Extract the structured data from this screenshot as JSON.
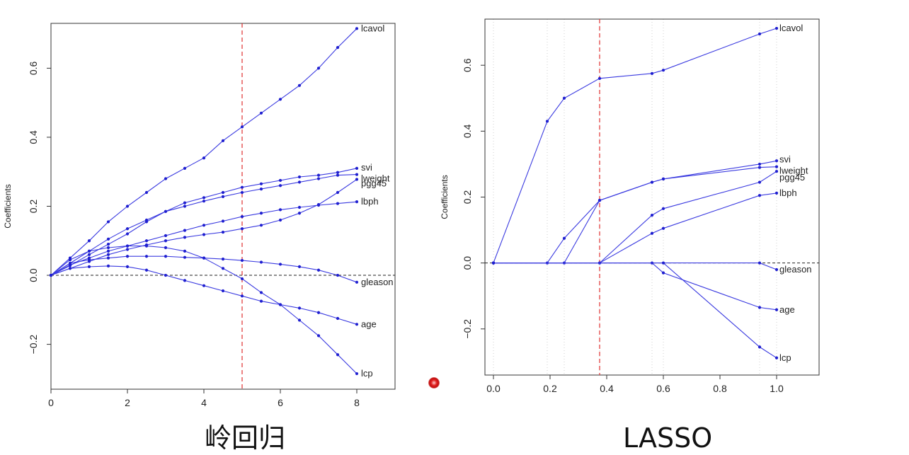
{
  "captions": {
    "ridge": "岭回归",
    "lasso": "LASSO"
  },
  "colors": {
    "series": "#3a3ae0",
    "points": "#1f1fd0",
    "lambda_line": "#e03030",
    "zero_line": "#222222",
    "cursor": "#e02020"
  },
  "chart_data": [
    {
      "id": "ridge",
      "type": "line",
      "ylabel": "Coefficients",
      "xlabel": "",
      "xlim": [
        0,
        9
      ],
      "ylim": [
        -0.33,
        0.73
      ],
      "x_ticks": [
        0,
        2,
        4,
        6,
        8
      ],
      "y_ticks": [
        -0.2,
        0.0,
        0.2,
        0.4,
        0.6
      ],
      "y_tick_labels": [
        "−0.2",
        "0.0",
        "0.2",
        "0.4",
        "0.6"
      ],
      "zero_line": 0,
      "vline": 5,
      "series": [
        {
          "name": "lcavol",
          "points": [
            [
              0,
              0
            ],
            [
              0.5,
              0.05
            ],
            [
              1,
              0.1
            ],
            [
              1.5,
              0.155
            ],
            [
              2,
              0.2
            ],
            [
              2.5,
              0.24
            ],
            [
              3,
              0.28
            ],
            [
              3.5,
              0.31
            ],
            [
              4,
              0.34
            ],
            [
              4.5,
              0.39
            ],
            [
              5,
              0.43
            ],
            [
              5.5,
              0.47
            ],
            [
              6,
              0.51
            ],
            [
              6.5,
              0.55
            ],
            [
              7,
              0.6
            ],
            [
              7.5,
              0.66
            ],
            [
              8,
              0.715
            ]
          ]
        },
        {
          "name": "svi",
          "points": [
            [
              0,
              0
            ],
            [
              0.5,
              0.028
            ],
            [
              1,
              0.06
            ],
            [
              1.5,
              0.09
            ],
            [
              2,
              0.12
            ],
            [
              2.5,
              0.155
            ],
            [
              3,
              0.185
            ],
            [
              3.5,
              0.21
            ],
            [
              4,
              0.225
            ],
            [
              4.5,
              0.24
            ],
            [
              5,
              0.255
            ],
            [
              5.5,
              0.265
            ],
            [
              6,
              0.275
            ],
            [
              6.5,
              0.285
            ],
            [
              7,
              0.29
            ],
            [
              7.5,
              0.298
            ],
            [
              8,
              0.31
            ]
          ]
        },
        {
          "name": "lweight",
          "points": [
            [
              0,
              0
            ],
            [
              0.5,
              0.035
            ],
            [
              1,
              0.07
            ],
            [
              1.5,
              0.105
            ],
            [
              2,
              0.135
            ],
            [
              2.5,
              0.16
            ],
            [
              3,
              0.185
            ],
            [
              3.5,
              0.2
            ],
            [
              4,
              0.215
            ],
            [
              4.5,
              0.228
            ],
            [
              5,
              0.24
            ],
            [
              5.5,
              0.25
            ],
            [
              6,
              0.26
            ],
            [
              6.5,
              0.27
            ],
            [
              7,
              0.28
            ],
            [
              7.5,
              0.29
            ],
            [
              8,
              0.292
            ]
          ]
        },
        {
          "name": "pgg45",
          "points": [
            [
              0,
              0
            ],
            [
              0.5,
              0.02
            ],
            [
              1,
              0.04
            ],
            [
              1.5,
              0.06
            ],
            [
              2,
              0.075
            ],
            [
              2.5,
              0.088
            ],
            [
              3,
              0.1
            ],
            [
              3.5,
              0.11
            ],
            [
              4,
              0.118
            ],
            [
              4.5,
              0.125
            ],
            [
              5,
              0.135
            ],
            [
              5.5,
              0.145
            ],
            [
              6,
              0.16
            ],
            [
              6.5,
              0.18
            ],
            [
              7,
              0.205
            ],
            [
              7.5,
              0.24
            ],
            [
              8,
              0.278
            ]
          ]
        },
        {
          "name": "lbph",
          "points": [
            [
              0,
              0
            ],
            [
              0.5,
              0.03
            ],
            [
              1,
              0.05
            ],
            [
              1.5,
              0.07
            ],
            [
              2,
              0.085
            ],
            [
              2.5,
              0.1
            ],
            [
              3,
              0.115
            ],
            [
              3.5,
              0.13
            ],
            [
              4,
              0.145
            ],
            [
              4.5,
              0.157
            ],
            [
              5,
              0.17
            ],
            [
              5.5,
              0.18
            ],
            [
              6,
              0.19
            ],
            [
              6.5,
              0.197
            ],
            [
              7,
              0.203
            ],
            [
              7.5,
              0.208
            ],
            [
              8,
              0.213
            ]
          ]
        },
        {
          "name": "gleason",
          "points": [
            [
              0,
              0
            ],
            [
              0.5,
              0.035
            ],
            [
              1,
              0.045
            ],
            [
              1.5,
              0.05
            ],
            [
              2,
              0.055
            ],
            [
              2.5,
              0.055
            ],
            [
              3,
              0.055
            ],
            [
              3.5,
              0.052
            ],
            [
              4,
              0.05
            ],
            [
              4.5,
              0.047
            ],
            [
              5,
              0.043
            ],
            [
              5.5,
              0.038
            ],
            [
              6,
              0.032
            ],
            [
              6.5,
              0.025
            ],
            [
              7,
              0.015
            ],
            [
              7.5,
              0.0
            ],
            [
              8,
              -0.02
            ]
          ]
        },
        {
          "name": "age",
          "points": [
            [
              0,
              0
            ],
            [
              0.5,
              0.02
            ],
            [
              1,
              0.025
            ],
            [
              1.5,
              0.027
            ],
            [
              2,
              0.025
            ],
            [
              2.5,
              0.015
            ],
            [
              3,
              0.0
            ],
            [
              3.5,
              -0.015
            ],
            [
              4,
              -0.03
            ],
            [
              4.5,
              -0.045
            ],
            [
              5,
              -0.06
            ],
            [
              5.5,
              -0.075
            ],
            [
              6,
              -0.085
            ],
            [
              6.5,
              -0.095
            ],
            [
              7,
              -0.108
            ],
            [
              7.5,
              -0.125
            ],
            [
              8,
              -0.142
            ]
          ]
        },
        {
          "name": "lcp",
          "points": [
            [
              0,
              0
            ],
            [
              0.5,
              0.045
            ],
            [
              1,
              0.07
            ],
            [
              1.5,
              0.08
            ],
            [
              2,
              0.085
            ],
            [
              2.5,
              0.085
            ],
            [
              3,
              0.08
            ],
            [
              3.5,
              0.07
            ],
            [
              4,
              0.05
            ],
            [
              4.5,
              0.02
            ],
            [
              5,
              -0.01
            ],
            [
              5.5,
              -0.05
            ],
            [
              6,
              -0.085
            ],
            [
              6.5,
              -0.13
            ],
            [
              7,
              -0.175
            ],
            [
              7.5,
              -0.23
            ],
            [
              8,
              -0.285
            ]
          ]
        }
      ]
    },
    {
      "id": "lasso",
      "type": "line",
      "ylabel": "Coefficients",
      "xlabel": "",
      "xlim": [
        -0.03,
        1.15
      ],
      "ylim": [
        -0.34,
        0.74
      ],
      "x_ticks": [
        0.0,
        0.2,
        0.4,
        0.6,
        0.8,
        1.0
      ],
      "x_tick_labels": [
        "0.0",
        "0.2",
        "0.4",
        "0.6",
        "0.8",
        "1.0"
      ],
      "y_ticks": [
        -0.2,
        0.0,
        0.2,
        0.4,
        0.6
      ],
      "y_tick_labels": [
        "−0.2",
        "0.0",
        "0.2",
        "0.4",
        "0.6"
      ],
      "zero_line": 0,
      "vline": 0.375,
      "knots": [
        0,
        0.19,
        0.25,
        0.375,
        0.56,
        0.6,
        0.94,
        1.0
      ],
      "series": [
        {
          "name": "lcavol",
          "points": [
            [
              0,
              0
            ],
            [
              0.19,
              0.43
            ],
            [
              0.25,
              0.5
            ],
            [
              0.375,
              0.56
            ],
            [
              0.56,
              0.575
            ],
            [
              0.6,
              0.585
            ],
            [
              0.94,
              0.695
            ],
            [
              1.0,
              0.712
            ]
          ]
        },
        {
          "name": "svi",
          "points": [
            [
              0,
              0
            ],
            [
              0.25,
              0
            ],
            [
              0.375,
              0.19
            ],
            [
              0.56,
              0.245
            ],
            [
              0.6,
              0.255
            ],
            [
              0.94,
              0.3
            ],
            [
              1.0,
              0.31
            ]
          ]
        },
        {
          "name": "lweight",
          "points": [
            [
              0,
              0
            ],
            [
              0.19,
              0
            ],
            [
              0.25,
              0.075
            ],
            [
              0.375,
              0.19
            ],
            [
              0.56,
              0.245
            ],
            [
              0.6,
              0.255
            ],
            [
              0.94,
              0.29
            ],
            [
              1.0,
              0.292
            ]
          ]
        },
        {
          "name": "pgg45",
          "points": [
            [
              0,
              0
            ],
            [
              0.375,
              0
            ],
            [
              0.56,
              0.145
            ],
            [
              0.6,
              0.165
            ],
            [
              0.94,
              0.245
            ],
            [
              1.0,
              0.278
            ]
          ]
        },
        {
          "name": "lbph",
          "points": [
            [
              0,
              0
            ],
            [
              0.375,
              0
            ],
            [
              0.56,
              0.09
            ],
            [
              0.6,
              0.105
            ],
            [
              0.94,
              0.205
            ],
            [
              1.0,
              0.212
            ]
          ]
        },
        {
          "name": "gleason",
          "points": [
            [
              0,
              0
            ],
            [
              0.94,
              0
            ],
            [
              1.0,
              -0.02
            ]
          ]
        },
        {
          "name": "age",
          "points": [
            [
              0,
              0
            ],
            [
              0.56,
              0
            ],
            [
              0.6,
              -0.03
            ],
            [
              0.94,
              -0.135
            ],
            [
              1.0,
              -0.142
            ]
          ]
        },
        {
          "name": "lcp",
          "points": [
            [
              0,
              0
            ],
            [
              0.6,
              0
            ],
            [
              0.94,
              -0.255
            ],
            [
              1.0,
              -0.288
            ]
          ]
        }
      ]
    }
  ]
}
